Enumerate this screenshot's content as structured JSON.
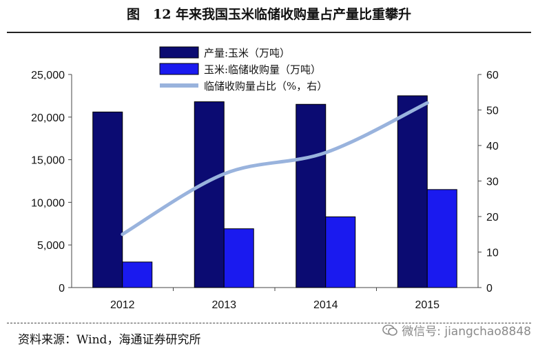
{
  "title": "图　12 年来我国玉米临储收购量占产量比重攀升",
  "source": "资料来源：Wind，海通证券研究所",
  "watermark": "微信号: jiangchao8848",
  "colors": {
    "production": "#0b0b72",
    "purchase": "#1a1aef",
    "ratio": "#99b3dd"
  },
  "chart_data": {
    "type": "bar",
    "categories": [
      "2012",
      "2013",
      "2014",
      "2015"
    ],
    "series": [
      {
        "name": "产量:玉米（万吨）",
        "kind": "bar",
        "axis": "left",
        "values": [
          20600,
          21800,
          21500,
          22500
        ]
      },
      {
        "name": "玉米:临储收购量（万吨）",
        "kind": "bar",
        "axis": "left",
        "values": [
          3000,
          6900,
          8300,
          11500
        ]
      },
      {
        "name": "临储收购量占比（%，右）",
        "kind": "line",
        "axis": "right",
        "values": [
          15,
          32,
          38,
          52
        ]
      }
    ],
    "ylim_left": [
      0,
      25000
    ],
    "yticks_left": [
      "0",
      "5,000",
      "10,000",
      "15,000",
      "20,000",
      "25,000"
    ],
    "ylim_right": [
      0,
      60
    ],
    "yticks_right": [
      "0",
      "10",
      "20",
      "30",
      "40",
      "50",
      "60"
    ],
    "legend": "top-center",
    "grid": false
  }
}
